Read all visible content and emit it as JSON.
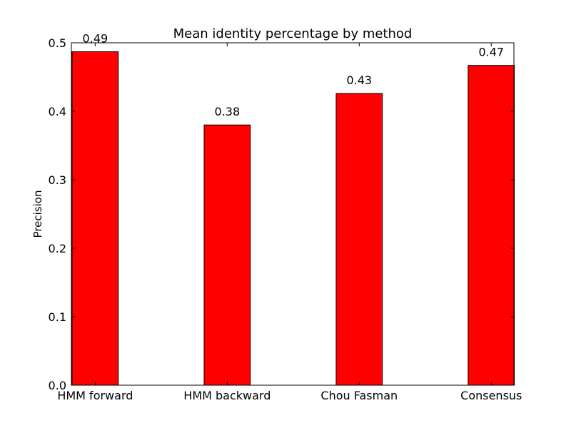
{
  "chart_data": {
    "type": "bar",
    "title": "Mean identity percentage by method",
    "xlabel": "",
    "ylabel": "Precision",
    "categories": [
      "HMM forward",
      "HMM backward",
      "Chou Fasman",
      "Consensus"
    ],
    "values": [
      0.487,
      0.38,
      0.426,
      0.467
    ],
    "value_labels": [
      "0.49",
      "0.38",
      "0.43",
      "0.47"
    ],
    "ylim": [
      0.0,
      0.5
    ],
    "yticks": [
      "0.0",
      "0.1",
      "0.2",
      "0.3",
      "0.4",
      "0.5"
    ],
    "bar_color": "#ff0000",
    "grid": false,
    "legend": "none"
  }
}
